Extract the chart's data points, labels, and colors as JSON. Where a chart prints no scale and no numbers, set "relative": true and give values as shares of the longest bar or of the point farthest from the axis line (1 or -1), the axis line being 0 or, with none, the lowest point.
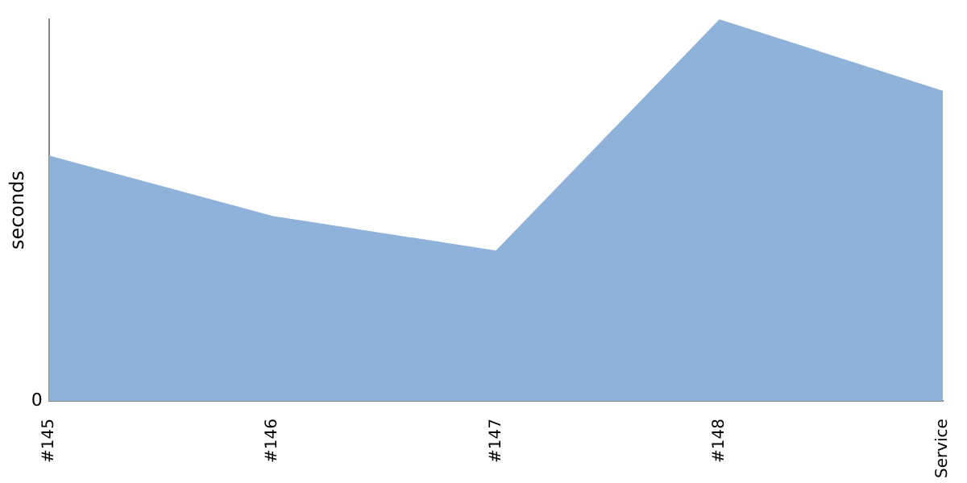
{
  "chart_data": {
    "type": "area",
    "ylabel": "seconds",
    "categories": [
      "#145",
      "#146",
      "#147",
      "#148",
      "Service"
    ],
    "series": [
      {
        "color": "#8fb2da",
        "values": [
          0.643,
          0.485,
          0.394,
          1,
          0.813
        ]
      }
    ],
    "relative": true,
    "grid": false,
    "legend": false,
    "annotations": [
      "0"
    ]
  }
}
